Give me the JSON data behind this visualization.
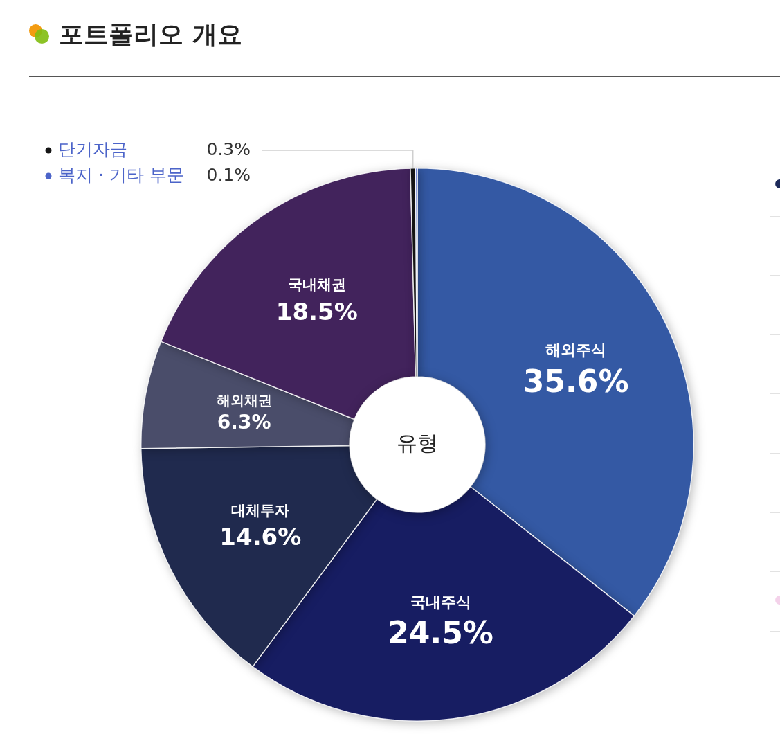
{
  "chart_data": {
    "type": "donut",
    "title": "포트폴리오 개요",
    "categories": [
      "해외주식",
      "국내주식",
      "대체투자",
      "해외채권",
      "국내채권",
      "단기자금",
      "복지 · 기타 부문"
    ],
    "values": [
      35.6,
      24.5,
      14.6,
      6.3,
      18.5,
      0.3,
      0.1
    ],
    "value_labels": [
      "35.6%",
      "24.5%",
      "14.6%",
      "6.3%",
      "18.5%",
      "0.3%",
      "0.1%"
    ],
    "colors": [
      "#3459a4",
      "#171d62",
      "#202a4e",
      "#4a4d6a",
      "#42235c",
      "#151515",
      "#4c64c9"
    ],
    "legend": "top left",
    "annotations": [
      "유형"
    ]
  }
}
